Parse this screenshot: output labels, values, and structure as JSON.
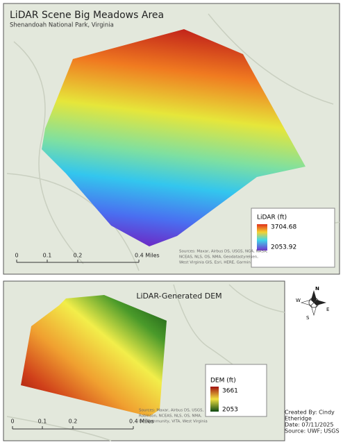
{
  "top_map": {
    "title": "LiDAR Scene Big Meadows Area",
    "subtitle": "Shenandoah National Park, Virginia",
    "legend": {
      "title": "LiDAR (ft)",
      "high": "3704.68",
      "low": "2053.92"
    },
    "scale_bar": [
      "0",
      "0.1",
      "0.2",
      "0.4 Miles"
    ],
    "sources": [
      "Sources: Maxar, Airbus DS, USGS, NGA, NASA,",
      "NCEAS, NLS, OS, NMA, Geodatastyrelsen,",
      "West Virginia GIS, Esri, HERE, Garmin"
    ]
  },
  "bottom_map": {
    "title": "LiDAR-Generated DEM",
    "legend": {
      "title": "DEM (ft)",
      "high": "3661",
      "low": "2053"
    },
    "scale_bar": [
      "0",
      "0.1",
      "0.2",
      "0.4 Miles"
    ],
    "sources": [
      "Sources: Maxar, Airbus DS, USGS,",
      "Robinson, NCEAS, NLS, OS, NMA,",
      "Esri Community, VITA, West Virginia"
    ]
  },
  "compass": {
    "n": "N",
    "e": "E",
    "s": "S",
    "w": "W"
  },
  "credits": [
    "Created By: Cindy",
    "Etheridge",
    "Date: 07/11/2025",
    "Source: UWF; USGS"
  ]
}
